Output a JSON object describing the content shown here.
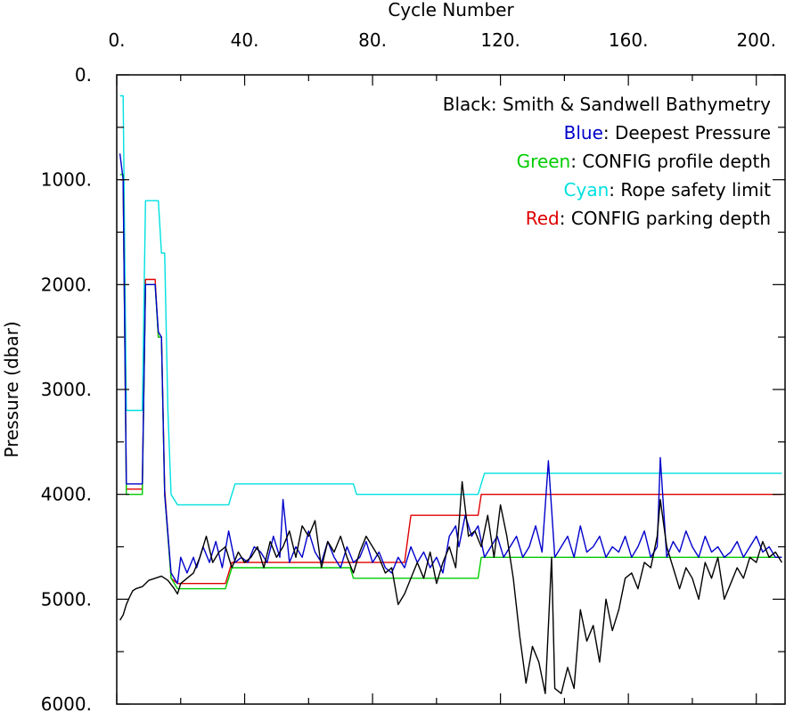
{
  "chart_data": {
    "type": "line",
    "xlabel": "Cycle Number",
    "ylabel": "Pressure (dbar)",
    "xlim": [
      0,
      209
    ],
    "ylim": [
      0,
      6000
    ],
    "y_inverted": true,
    "x_axis_position": "top",
    "x_ticks": [
      0,
      40,
      80,
      120,
      160,
      200
    ],
    "x_tick_labels": [
      "0.",
      "40.",
      "80.",
      "120.",
      "160.",
      "200."
    ],
    "y_ticks": [
      0,
      1000,
      2000,
      3000,
      4000,
      5000,
      6000
    ],
    "y_tick_labels": [
      "0.",
      "1000.",
      "2000.",
      "3000.",
      "4000.",
      "5000.",
      "6000."
    ],
    "grid": false,
    "legend_position": "top-right",
    "legend": [
      {
        "key": "Black",
        "rest": ": Smith & Sandwell Bathymetry",
        "color": "#000000"
      },
      {
        "key": "Blue",
        "rest": ": Deepest Pressure",
        "color": "#0000cc"
      },
      {
        "key": "Green",
        "rest": ": CONFIG profile depth",
        "color": "#00cc00"
      },
      {
        "key": "Cyan",
        "rest": ": Rope safety limit",
        "color": "#00e0e0"
      },
      {
        "key": "Red",
        "rest": ": CONFIG parking depth",
        "color": "#e00000"
      }
    ],
    "series": [
      {
        "color": "#00e0e0",
        "step": true,
        "points": [
          [
            1,
            200
          ],
          [
            2,
            200
          ],
          [
            3,
            3200
          ],
          [
            8,
            3200
          ],
          [
            9,
            1200
          ],
          [
            13,
            1200
          ],
          [
            14,
            1700
          ],
          [
            15,
            1700
          ],
          [
            16,
            3200
          ],
          [
            17,
            4000
          ],
          [
            19,
            4100
          ],
          [
            35,
            4100
          ],
          [
            37,
            3900
          ],
          [
            74,
            3900
          ],
          [
            75,
            4000
          ],
          [
            113,
            4000
          ],
          [
            115,
            3800
          ],
          [
            208,
            3800
          ]
        ]
      },
      {
        "color": "#e00000",
        "step": true,
        "points": [
          [
            1,
            1000
          ],
          [
            2,
            1000
          ],
          [
            3,
            3950
          ],
          [
            8,
            3950
          ],
          [
            9,
            1950
          ],
          [
            12,
            1950
          ],
          [
            13,
            2500
          ],
          [
            14,
            2500
          ],
          [
            15,
            3950
          ],
          [
            17,
            4800
          ],
          [
            19,
            4850
          ],
          [
            34,
            4850
          ],
          [
            36,
            4650
          ],
          [
            90,
            4650
          ],
          [
            92,
            4200
          ],
          [
            107,
            4200
          ],
          [
            108,
            4200
          ],
          [
            113,
            4200
          ],
          [
            114,
            4000
          ],
          [
            208,
            4000
          ]
        ]
      },
      {
        "color": "#00cc00",
        "step": true,
        "points": [
          [
            1,
            950
          ],
          [
            2,
            950
          ],
          [
            3,
            4000
          ],
          [
            8,
            4000
          ],
          [
            9,
            2000
          ],
          [
            12,
            2000
          ],
          [
            13,
            2500
          ],
          [
            14,
            2500
          ],
          [
            15,
            4000
          ],
          [
            17,
            4800
          ],
          [
            19,
            4900
          ],
          [
            34,
            4900
          ],
          [
            36,
            4700
          ],
          [
            73,
            4700
          ],
          [
            74,
            4800
          ],
          [
            113,
            4800
          ],
          [
            114,
            4600
          ],
          [
            208,
            4600
          ]
        ]
      },
      {
        "color": "#0000cc",
        "step": false,
        "points": [
          [
            1,
            750
          ],
          [
            2,
            1000
          ],
          [
            3,
            3900
          ],
          [
            8,
            3900
          ],
          [
            9,
            2000
          ],
          [
            12,
            2000
          ],
          [
            13,
            2450
          ],
          [
            14,
            2500
          ],
          [
            15,
            4000
          ],
          [
            17,
            4750
          ],
          [
            19,
            4850
          ],
          [
            20,
            4600
          ],
          [
            22,
            4750
          ],
          [
            24,
            4600
          ],
          [
            25,
            4700
          ],
          [
            27,
            4500
          ],
          [
            29,
            4650
          ],
          [
            31,
            4450
          ],
          [
            33,
            4700
          ],
          [
            35,
            4350
          ],
          [
            37,
            4650
          ],
          [
            39,
            4600
          ],
          [
            41,
            4650
          ],
          [
            43,
            4500
          ],
          [
            45,
            4550
          ],
          [
            47,
            4650
          ],
          [
            49,
            4400
          ],
          [
            51,
            4600
          ],
          [
            52,
            4050
          ],
          [
            54,
            4650
          ],
          [
            56,
            4500
          ],
          [
            58,
            4600
          ],
          [
            60,
            4350
          ],
          [
            62,
            4550
          ],
          [
            64,
            4650
          ],
          [
            66,
            4450
          ],
          [
            68,
            4600
          ],
          [
            70,
            4700
          ],
          [
            72,
            4500
          ],
          [
            74,
            4650
          ],
          [
            76,
            4600
          ],
          [
            78,
            4450
          ],
          [
            80,
            4650
          ],
          [
            82,
            4550
          ],
          [
            84,
            4700
          ],
          [
            86,
            4750
          ],
          [
            88,
            4600
          ],
          [
            90,
            4700
          ],
          [
            92,
            4500
          ],
          [
            94,
            4650
          ],
          [
            96,
            4550
          ],
          [
            98,
            4700
          ],
          [
            100,
            4600
          ],
          [
            102,
            4750
          ],
          [
            104,
            4400
          ],
          [
            106,
            4300
          ],
          [
            107,
            4500
          ],
          [
            109,
            4200
          ],
          [
            111,
            4400
          ],
          [
            113,
            4300
          ],
          [
            115,
            4600
          ],
          [
            117,
            4500
          ],
          [
            119,
            4400
          ],
          [
            121,
            4600
          ],
          [
            123,
            4500
          ],
          [
            125,
            4400
          ],
          [
            127,
            4600
          ],
          [
            129,
            4500
          ],
          [
            131,
            4300
          ],
          [
            133,
            4550
          ],
          [
            135,
            3680
          ],
          [
            137,
            4600
          ],
          [
            139,
            4500
          ],
          [
            141,
            4400
          ],
          [
            143,
            4600
          ],
          [
            145,
            4300
          ],
          [
            147,
            4550
          ],
          [
            149,
            4500
          ],
          [
            151,
            4400
          ],
          [
            153,
            4600
          ],
          [
            155,
            4500
          ],
          [
            157,
            4550
          ],
          [
            159,
            4400
          ],
          [
            161,
            4600
          ],
          [
            163,
            4500
          ],
          [
            165,
            4350
          ],
          [
            167,
            4600
          ],
          [
            169,
            4500
          ],
          [
            170,
            3650
          ],
          [
            172,
            4600
          ],
          [
            174,
            4450
          ],
          [
            176,
            4550
          ],
          [
            178,
            4350
          ],
          [
            180,
            4500
          ],
          [
            182,
            4600
          ],
          [
            184,
            4400
          ],
          [
            186,
            4550
          ],
          [
            188,
            4500
          ],
          [
            190,
            4600
          ],
          [
            192,
            4550
          ],
          [
            194,
            4450
          ],
          [
            196,
            4600
          ],
          [
            198,
            4500
          ],
          [
            200,
            4400
          ],
          [
            202,
            4550
          ],
          [
            204,
            4500
          ],
          [
            206,
            4600
          ],
          [
            208,
            4600
          ]
        ]
      },
      {
        "color": "#000000",
        "step": false,
        "points": [
          [
            1,
            5200
          ],
          [
            2,
            5150
          ],
          [
            3,
            5050
          ],
          [
            4,
            4980
          ],
          [
            5,
            4920
          ],
          [
            6,
            4900
          ],
          [
            8,
            4880
          ],
          [
            10,
            4820
          ],
          [
            12,
            4800
          ],
          [
            14,
            4780
          ],
          [
            16,
            4820
          ],
          [
            18,
            4900
          ],
          [
            19,
            4950
          ],
          [
            20,
            4850
          ],
          [
            22,
            4800
          ],
          [
            24,
            4750
          ],
          [
            26,
            4600
          ],
          [
            28,
            4400
          ],
          [
            30,
            4650
          ],
          [
            32,
            4550
          ],
          [
            34,
            4500
          ],
          [
            36,
            4700
          ],
          [
            38,
            4550
          ],
          [
            40,
            4650
          ],
          [
            42,
            4600
          ],
          [
            44,
            4500
          ],
          [
            46,
            4700
          ],
          [
            48,
            4450
          ],
          [
            50,
            4600
          ],
          [
            52,
            4500
          ],
          [
            54,
            4350
          ],
          [
            56,
            4600
          ],
          [
            58,
            4300
          ],
          [
            60,
            4400
          ],
          [
            62,
            4250
          ],
          [
            64,
            4700
          ],
          [
            66,
            4450
          ],
          [
            68,
            4550
          ],
          [
            70,
            4400
          ],
          [
            72,
            4600
          ],
          [
            74,
            4750
          ],
          [
            76,
            4550
          ],
          [
            78,
            4400
          ],
          [
            80,
            4500
          ],
          [
            82,
            4600
          ],
          [
            84,
            4750
          ],
          [
            86,
            4700
          ],
          [
            88,
            5050
          ],
          [
            90,
            4950
          ],
          [
            92,
            4800
          ],
          [
            94,
            4650
          ],
          [
            96,
            4800
          ],
          [
            98,
            4550
          ],
          [
            100,
            4850
          ],
          [
            102,
            4650
          ],
          [
            104,
            4500
          ],
          [
            106,
            4700
          ],
          [
            108,
            3880
          ],
          [
            110,
            4400
          ],
          [
            112,
            4350
          ],
          [
            114,
            4500
          ],
          [
            116,
            4200
          ],
          [
            118,
            4600
          ],
          [
            120,
            4100
          ],
          [
            122,
            4400
          ],
          [
            124,
            4800
          ],
          [
            126,
            5350
          ],
          [
            128,
            5800
          ],
          [
            130,
            5450
          ],
          [
            132,
            5600
          ],
          [
            134,
            5900
          ],
          [
            136,
            4600
          ],
          [
            137,
            5850
          ],
          [
            139,
            5900
          ],
          [
            141,
            5650
          ],
          [
            143,
            5850
          ],
          [
            145,
            5100
          ],
          [
            147,
            5400
          ],
          [
            149,
            5250
          ],
          [
            151,
            5600
          ],
          [
            153,
            5000
          ],
          [
            155,
            5300
          ],
          [
            157,
            5100
          ],
          [
            159,
            4800
          ],
          [
            161,
            4750
          ],
          [
            163,
            4900
          ],
          [
            165,
            4650
          ],
          [
            167,
            4700
          ],
          [
            169,
            4400
          ],
          [
            170,
            4050
          ],
          [
            172,
            4500
          ],
          [
            174,
            4700
          ],
          [
            176,
            4900
          ],
          [
            178,
            4700
          ],
          [
            180,
            4800
          ],
          [
            182,
            5000
          ],
          [
            184,
            4650
          ],
          [
            186,
            4800
          ],
          [
            188,
            4600
          ],
          [
            190,
            5000
          ],
          [
            192,
            4850
          ],
          [
            194,
            4700
          ],
          [
            196,
            4800
          ],
          [
            198,
            4600
          ],
          [
            200,
            4650
          ],
          [
            202,
            4450
          ],
          [
            204,
            4600
          ],
          [
            206,
            4550
          ],
          [
            208,
            4650
          ]
        ]
      }
    ]
  }
}
